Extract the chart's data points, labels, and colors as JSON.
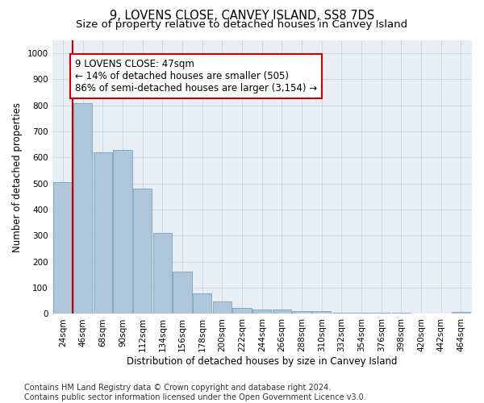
{
  "title": "9, LOVENS CLOSE, CANVEY ISLAND, SS8 7DS",
  "subtitle": "Size of property relative to detached houses in Canvey Island",
  "xlabel": "Distribution of detached houses by size in Canvey Island",
  "ylabel": "Number of detached properties",
  "categories": [
    "24sqm",
    "46sqm",
    "68sqm",
    "90sqm",
    "112sqm",
    "134sqm",
    "156sqm",
    "178sqm",
    "200sqm",
    "222sqm",
    "244sqm",
    "266sqm",
    "288sqm",
    "310sqm",
    "332sqm",
    "354sqm",
    "376sqm",
    "398sqm",
    "420sqm",
    "442sqm",
    "464sqm"
  ],
  "values": [
    505,
    810,
    620,
    630,
    480,
    310,
    163,
    80,
    47,
    22,
    18,
    18,
    12,
    10,
    5,
    5,
    5,
    5,
    0,
    0,
    8
  ],
  "bar_color": "#aec6d8",
  "bar_edge_color": "#6699bb",
  "vline_color": "#cc0000",
  "annotation_text": "9 LOVENS CLOSE: 47sqm\n← 14% of detached houses are smaller (505)\n86% of semi-detached houses are larger (3,154) →",
  "annotation_box_color": "#ffffff",
  "annotation_box_edge_color": "#cc0000",
  "ylim": [
    0,
    1050
  ],
  "yticks": [
    0,
    100,
    200,
    300,
    400,
    500,
    600,
    700,
    800,
    900,
    1000
  ],
  "footer_line1": "Contains HM Land Registry data © Crown copyright and database right 2024.",
  "footer_line2": "Contains public sector information licensed under the Open Government Licence v3.0.",
  "background_color": "#ffffff",
  "axes_bg_color": "#e8eef4",
  "grid_color": "#c8d4e0",
  "title_fontsize": 10.5,
  "subtitle_fontsize": 9.5,
  "axis_label_fontsize": 8.5,
  "tick_fontsize": 7.5,
  "annotation_fontsize": 8.5,
  "footer_fontsize": 7
}
